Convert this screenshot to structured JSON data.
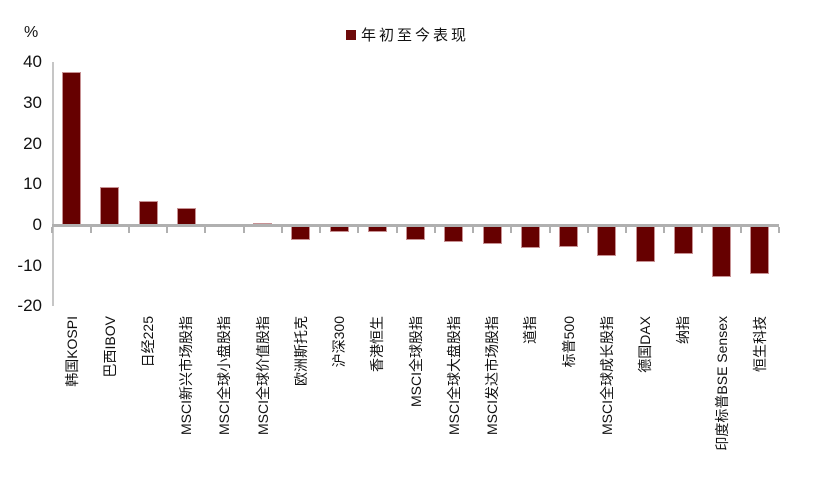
{
  "chart_data": {
    "type": "bar",
    "title": "",
    "unit_label": "%",
    "legend": "年初至今表现",
    "legend_position": "top-center",
    "grid": false,
    "ylim": [
      -20,
      40
    ],
    "yticks": [
      40,
      30,
      20,
      10,
      0,
      -10,
      -20
    ],
    "categories": [
      "韩国KOSPI",
      "巴西IBOV",
      "日经225",
      "MSCI新兴市场股指",
      "MSCI全球小盘股指",
      "MSCI全球价值股指",
      "欧洲斯托克",
      "沪深300",
      "香港恒生",
      "MSCI全球股指",
      "MSCI全球大盘股指",
      "MSCI发达市场股指",
      "道指",
      "标普500",
      "MSCI全球成长股指",
      "德国DAX",
      "纳指",
      "印度标普BSE Sensex",
      "恒生科技"
    ],
    "values": [
      37.5,
      9.3,
      6.0,
      4.1,
      0.1,
      0.5,
      -3.8,
      -1.8,
      -1.8,
      -3.8,
      -4.2,
      -4.7,
      -5.6,
      -5.3,
      -7.6,
      -9.0,
      -7.2,
      -12.8,
      -12.1
    ],
    "bar_color": "#660000",
    "bar_border_color": "#C79193",
    "axis_color": "#B0B0B0",
    "text_color": "#111111"
  }
}
